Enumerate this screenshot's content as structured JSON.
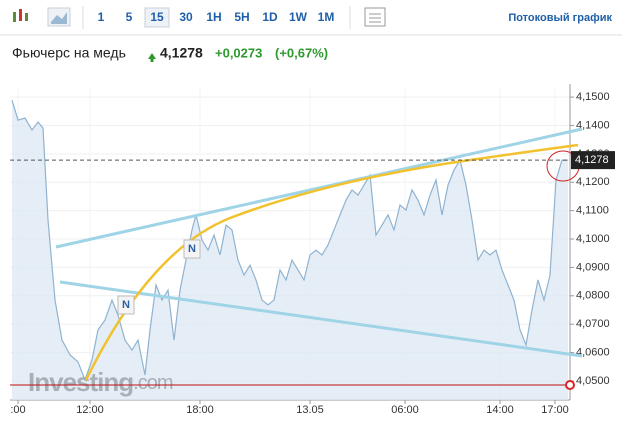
{
  "toolbar": {
    "intervals": [
      "1",
      "5",
      "15",
      "30",
      "1H",
      "5H",
      "1D",
      "1W",
      "1M"
    ],
    "active_interval": "15",
    "stream_link": "Потоковый график"
  },
  "header": {
    "title": "Фьючерс на медь",
    "change": "+0,0273",
    "change_pct": "(+0,67%)"
  },
  "watermark": {
    "brand": "Investing",
    "suffix": ".com"
  },
  "news_markers": [
    "N",
    "N"
  ],
  "chart_data": {
    "type": "area",
    "last": {
      "value": 4.1278,
      "label": "4,1278"
    },
    "x": [
      2,
      8,
      15,
      22,
      28,
      33,
      38,
      45,
      52,
      60,
      68,
      75,
      82,
      88,
      95,
      102,
      108,
      115,
      122,
      128,
      135,
      140,
      146,
      152,
      158,
      164,
      170,
      176,
      182,
      186,
      192,
      198,
      204,
      210,
      216,
      222,
      228,
      234,
      240,
      246,
      252,
      258,
      264,
      270,
      276,
      282,
      288,
      294,
      300,
      306,
      312,
      318,
      324,
      330,
      336,
      342,
      348,
      354,
      360,
      366,
      372,
      378,
      384,
      390,
      396,
      402,
      408,
      414,
      420,
      426,
      432,
      438,
      444,
      450,
      456,
      462,
      468,
      474,
      480,
      486,
      492,
      498,
      504,
      510,
      516,
      522,
      528,
      534,
      540,
      546,
      552,
      558
    ],
    "series": [
      {
        "color": "#8fb3d0",
        "values": [
          4.1489,
          4.1419,
          4.1426,
          4.1384,
          4.1412,
          4.1391,
          4.1067,
          4.0785,
          4.0644,
          4.0592,
          4.0567,
          4.0504,
          4.0574,
          4.068,
          4.0715,
          4.0785,
          4.0732,
          4.0644,
          4.0609,
          4.0644,
          4.0521,
          4.068,
          4.0838,
          4.0785,
          4.082,
          4.0644,
          4.082,
          4.0926,
          4.1032,
          4.1085,
          4.0996,
          4.0961,
          4.1014,
          4.0944,
          4.1049,
          4.1032,
          4.0926,
          4.0873,
          4.0908,
          4.0856,
          4.0785,
          4.0768,
          4.0785,
          4.0891,
          4.0856,
          4.0926,
          4.0891,
          4.0856,
          4.0944,
          4.0961,
          4.0944,
          4.0979,
          4.1032,
          4.1085,
          4.1137,
          4.1173,
          4.1155,
          4.119,
          4.1225,
          4.1014,
          4.1049,
          4.1085,
          4.1032,
          4.112,
          4.1102,
          4.1173,
          4.1137,
          4.1085,
          4.1155,
          4.1208,
          4.1085,
          4.119,
          4.1243,
          4.1278,
          4.119,
          4.1067,
          4.0926,
          4.0961,
          4.0944,
          4.0961,
          4.0891,
          4.0838,
          4.0785,
          4.068,
          4.0627,
          4.075,
          4.0856,
          4.0785,
          4.0873,
          4.1208,
          4.1278,
          4.1278
        ]
      }
    ],
    "xlim": [
      0,
      560
    ],
    "xticks": [
      {
        "value": 8,
        "label": ":00"
      },
      {
        "value": 80,
        "label": "12:00"
      },
      {
        "value": 190,
        "label": "18:00"
      },
      {
        "value": 300,
        "label": "13.05"
      },
      {
        "value": 395,
        "label": "06:00"
      },
      {
        "value": 490,
        "label": "14:00"
      },
      {
        "value": 545,
        "label": "17:00"
      }
    ],
    "ylim": [
      4.0433,
      4.1532
    ],
    "yticks": [
      {
        "value": 4.15,
        "label": "4,1500"
      },
      {
        "value": 4.14,
        "label": "4,1400"
      },
      {
        "value": 4.13,
        "label": "4,1300"
      },
      {
        "value": 4.12,
        "label": "4,1200"
      },
      {
        "value": 4.11,
        "label": "4,1100"
      },
      {
        "value": 4.1,
        "label": "4,1000"
      },
      {
        "value": 4.09,
        "label": "4,0900"
      },
      {
        "value": 4.08,
        "label": "4,0800"
      },
      {
        "value": 4.07,
        "label": "4,0700"
      },
      {
        "value": 4.06,
        "label": "4,0600"
      },
      {
        "value": 4.05,
        "label": "4,0500"
      }
    ],
    "grid": true
  }
}
